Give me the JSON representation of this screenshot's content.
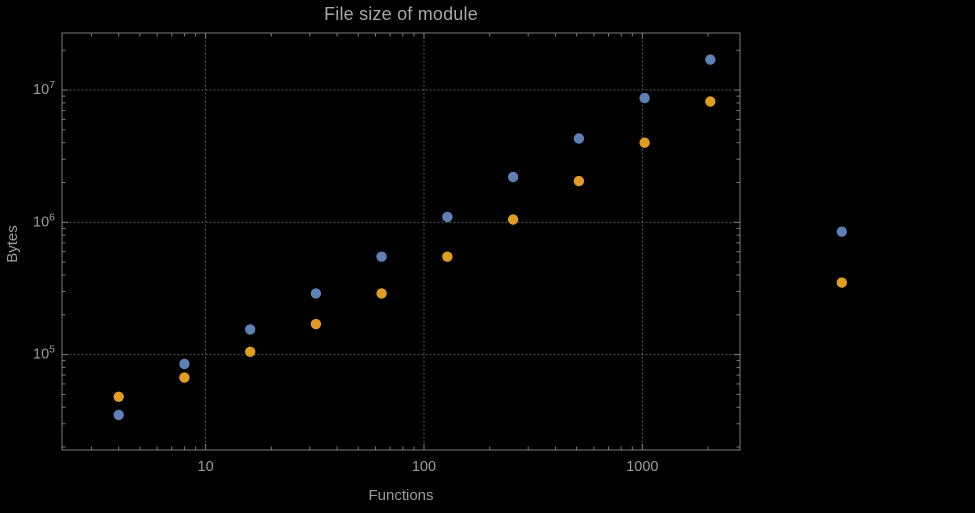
{
  "chart_data": {
    "type": "scatter",
    "title": "File size of module",
    "xlabel": "Functions",
    "ylabel": "Bytes",
    "x_scale": "log",
    "y_scale": "log",
    "xlim": [
      2.2,
      2800
    ],
    "ylim": [
      19000,
      27000000
    ],
    "grid": "dotted lines at decade ticks",
    "legend": "none",
    "x": [
      4,
      8,
      16,
      32,
      64,
      128,
      256,
      512,
      1024,
      2048,
      8192
    ],
    "series": [
      {
        "name": "blue",
        "color": "#5e81b5",
        "values": [
          35000,
          85000,
          155000,
          290000,
          550000,
          1100000,
          2200000,
          4300000,
          8700000,
          17000000,
          850000
        ]
      },
      {
        "name": "orange",
        "color": "#e19c24",
        "values": [
          48000,
          67000,
          105000,
          170000,
          290000,
          550000,
          1050000,
          2050000,
          4000000,
          8200000,
          350000
        ]
      }
    ],
    "x_tick_values": [
      10,
      100,
      1000
    ],
    "x_tick_labels": [
      "10",
      "100",
      "1000"
    ],
    "y_tick_exponents": [
      5,
      6,
      7
    ],
    "y_tick_labels": [
      "10^5",
      "10^6",
      "10^7"
    ]
  },
  "style": {
    "background_color": "#000000",
    "frame_color": "#7d7d7d",
    "grid_color": "#636363",
    "text_color": "#9c9c9c",
    "title_color": "#a8a8a8",
    "point_radius": 5.2
  }
}
